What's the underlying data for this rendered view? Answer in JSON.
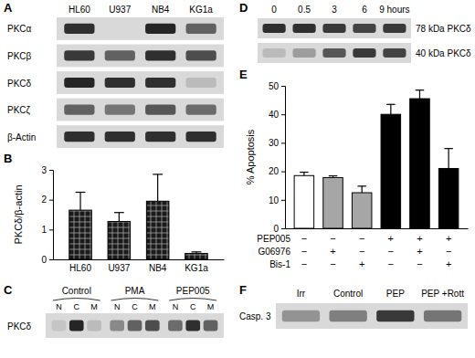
{
  "panel_labels": [
    "A",
    "B",
    "C",
    "D",
    "E",
    "F"
  ],
  "chart_data": [
    {
      "type": "bar",
      "y_label": "PKCδ/β-actin",
      "categories": [
        "HL60",
        "U937",
        "NB4",
        "KG1a"
      ],
      "values": [
        1.65,
        1.27,
        1.95,
        0.2
      ],
      "errors": [
        0.6,
        0.3,
        0.9,
        0.05
      ],
      "color": "#1a1a1a",
      "ylim": [
        0,
        3
      ],
      "yticks": [
        0,
        1,
        2,
        3
      ]
    },
    {
      "type": "bar",
      "y_label": "% Apoptosis",
      "categories": [
        null,
        null,
        null,
        null,
        null,
        null
      ],
      "values": [
        18.5,
        17.8,
        12.5,
        40,
        45.5,
        21
      ],
      "errors": [
        1.2,
        0.6,
        2.3,
        3.5,
        3,
        7
      ],
      "colors": [
        "#ffffff",
        "#a6a6a6",
        "#a6a6a6",
        "#000000",
        "#000000",
        "#000000"
      ],
      "ylim": [
        0,
        50
      ],
      "yticks": [
        0,
        10,
        20,
        30,
        40,
        50
      ],
      "treatments": [
        {
          "label": "PEP005",
          "signs": [
            "−",
            "−",
            "−",
            "+",
            "+",
            "+"
          ]
        },
        {
          "label": "G06976",
          "signs": [
            "−",
            "+",
            "−",
            "−",
            "+",
            "−"
          ]
        },
        {
          "label": "Bis-1",
          "signs": [
            "−",
            "−",
            "+",
            "−",
            "−",
            "+"
          ]
        }
      ]
    }
  ],
  "blots": {
    "A": {
      "columns": [
        "HL60",
        "U937",
        "NB4",
        "KG1a"
      ],
      "rows": [
        {
          "label": "PKCα",
          "intensity": [
            0.85,
            0,
            0.9,
            0.6
          ]
        },
        {
          "label": "PKCβ",
          "intensity": [
            0.8,
            0.6,
            0.85,
            0.7
          ]
        },
        {
          "label": "PKCδ",
          "intensity": [
            0.9,
            0.85,
            0.85,
            0.15
          ]
        },
        {
          "label": "PKCζ",
          "intensity": [
            0.6,
            0.5,
            0.65,
            0.55
          ]
        },
        {
          "label": "β-Actin",
          "intensity": [
            0.85,
            0.85,
            0.85,
            0.85
          ]
        }
      ]
    },
    "C": {
      "row_label": "PKCδ",
      "groups": [
        {
          "label": "Control",
          "lanes": [
            "N",
            "C",
            "M"
          ],
          "intensity": [
            0.1,
            0.9,
            0.15
          ]
        },
        {
          "label": "PMA",
          "lanes": [
            "N",
            "C",
            "M"
          ],
          "intensity": [
            0.4,
            0.6,
            0.7
          ]
        },
        {
          "label": "PEP005",
          "lanes": [
            "N",
            "C",
            "M"
          ],
          "intensity": [
            0.55,
            0.85,
            0.6
          ]
        }
      ]
    },
    "D": {
      "columns": [
        "0",
        "0.5",
        "3",
        "6",
        "9 hours"
      ],
      "rows": [
        {
          "label": "78 kDa PKCδ",
          "intensity": [
            0.85,
            0.85,
            0.8,
            0.75,
            0.8
          ]
        },
        {
          "label": "40 kDa PKCδ",
          "intensity": [
            0.15,
            0.3,
            0.65,
            0.8,
            0.75
          ]
        }
      ]
    },
    "F": {
      "row_label": "Casp. 3",
      "columns": [
        "Irr",
        "Control",
        "PEP",
        "PEP +Rott"
      ],
      "intensity": [
        0.35,
        0.45,
        0.8,
        0.5
      ]
    }
  }
}
